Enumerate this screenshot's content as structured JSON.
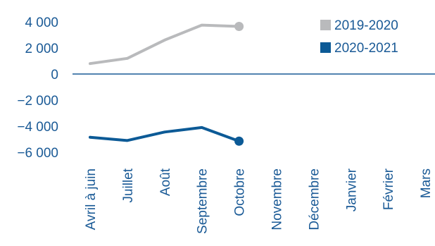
{
  "chart_data": {
    "type": "line",
    "title": "(",
    "x": [
      "Avril à juin",
      "Juillet",
      "Août",
      "Septembre",
      "Octobre",
      "Novembre",
      "Décembre",
      "Janvier",
      "Février",
      "Mars"
    ],
    "ylim": [
      -6000,
      4000
    ],
    "yticks": [
      4000,
      2000,
      0,
      -2000,
      -4000,
      -6000
    ],
    "ytick_labels": [
      "4 000",
      "2 000",
      "0",
      "−2 000",
      "−4 000",
      "−6 000"
    ],
    "grid": false,
    "legend_position": "top-right",
    "series": [
      {
        "name": "2019-2020",
        "color": "#b9babc",
        "values": [
          800,
          1200,
          2600,
          3750,
          3650,
          null,
          null,
          null,
          null,
          null
        ]
      },
      {
        "name": "2020-2021",
        "color": "#0c5a96",
        "values": [
          -4850,
          -5100,
          -4450,
          -4100,
          -5150,
          null,
          null,
          null,
          null,
          null
        ]
      }
    ],
    "axis_color": "#1a5a96",
    "text_color": "#1a5a96"
  }
}
